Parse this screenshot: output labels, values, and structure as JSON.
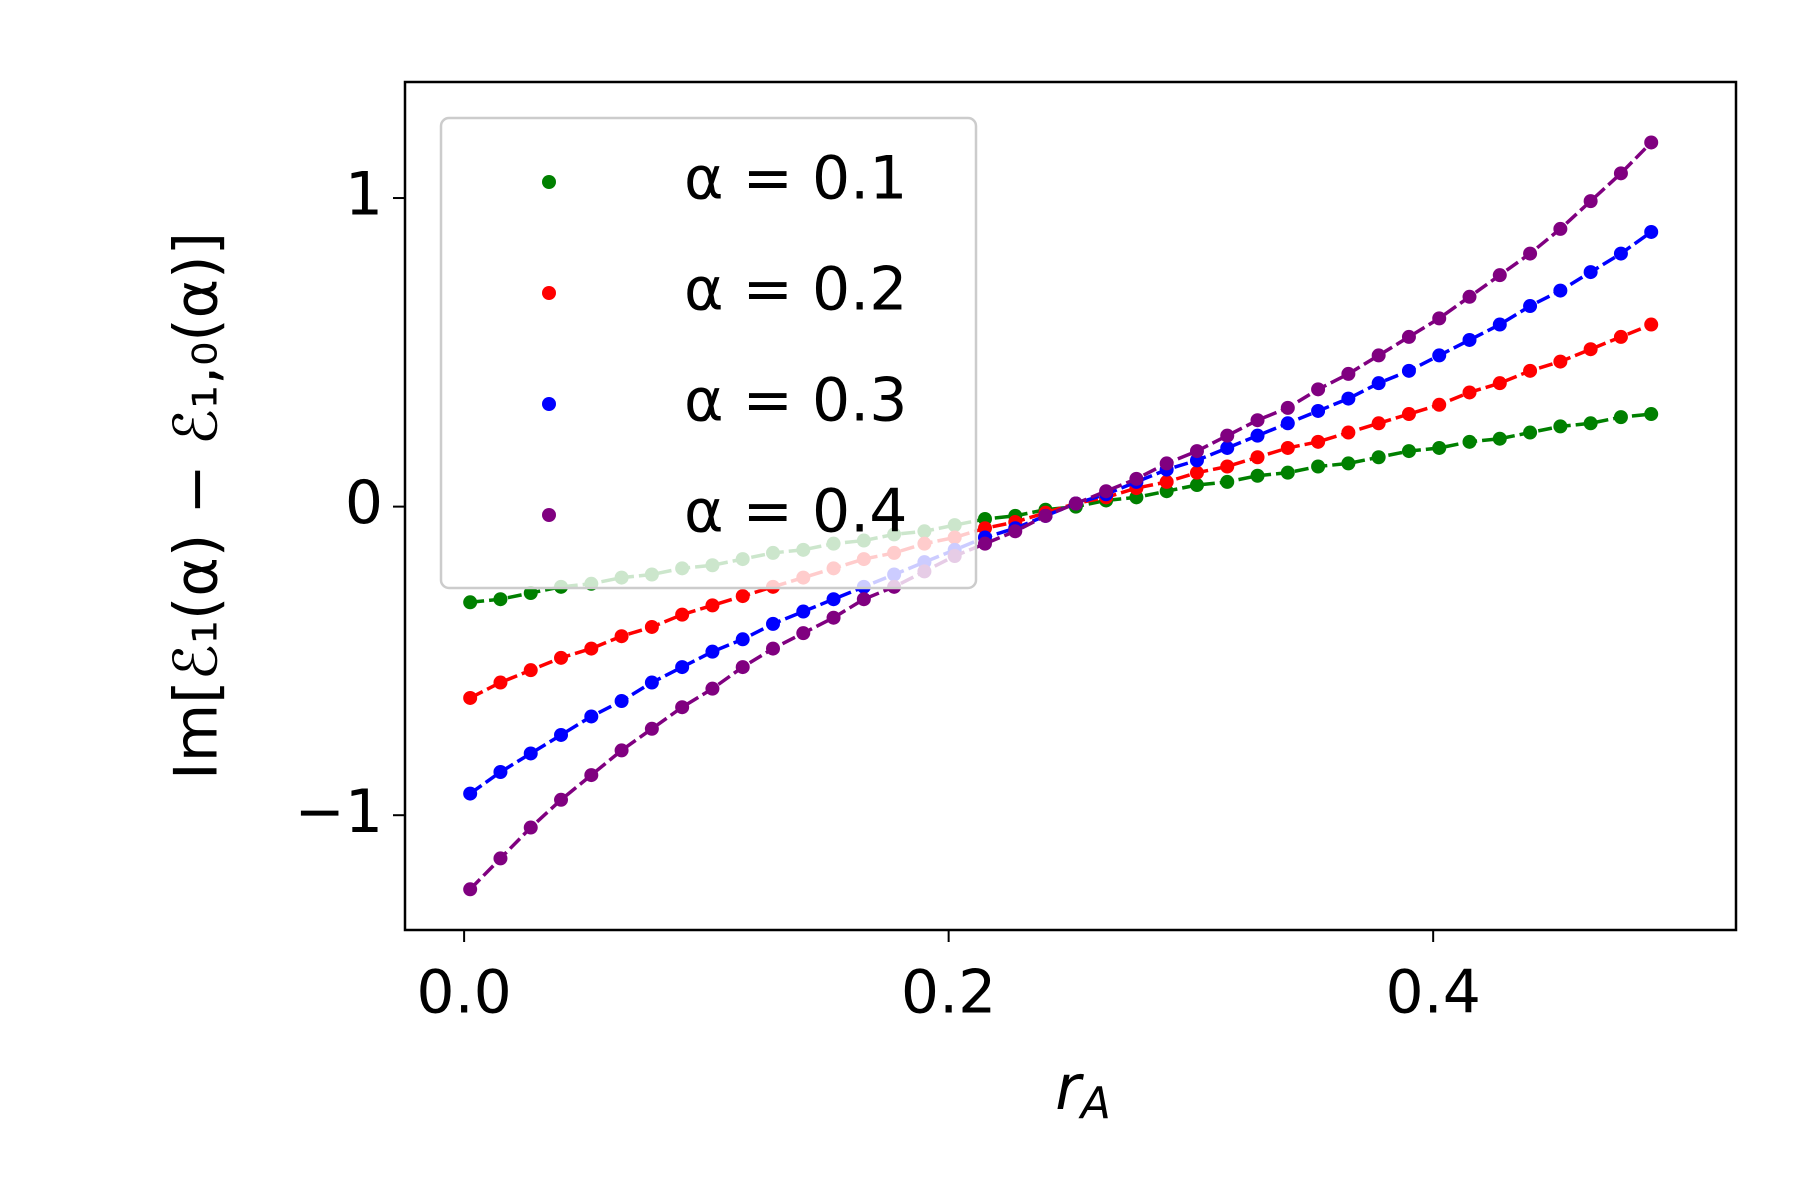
{
  "chart_data": {
    "type": "line",
    "xlabel": "rA",
    "ylabel": "Im[ℰ₁(α) − ℰ₁,₀(α)]",
    "x": [
      0.0025,
      0.015,
      0.0275,
      0.04,
      0.0525,
      0.065,
      0.0775,
      0.09,
      0.1025,
      0.115,
      0.1275,
      0.14,
      0.1525,
      0.165,
      0.1775,
      0.19,
      0.2025,
      0.215,
      0.2275,
      0.24,
      0.2525,
      0.265,
      0.2775,
      0.29,
      0.3025,
      0.315,
      0.3275,
      0.34,
      0.3525,
      0.365,
      0.3775,
      0.39,
      0.4025,
      0.415,
      0.4275,
      0.44,
      0.4525,
      0.465,
      0.4775,
      0.49
    ],
    "series": [
      {
        "name": "α = 0.1",
        "color": "#008000",
        "values": [
          -0.31,
          -0.3,
          -0.28,
          -0.26,
          -0.25,
          -0.23,
          -0.22,
          -0.2,
          -0.19,
          -0.17,
          -0.15,
          -0.14,
          -0.12,
          -0.11,
          -0.09,
          -0.08,
          -0.06,
          -0.04,
          -0.03,
          -0.01,
          0.0,
          0.02,
          0.03,
          0.05,
          0.07,
          0.08,
          0.1,
          0.11,
          0.13,
          0.14,
          0.16,
          0.18,
          0.19,
          0.21,
          0.22,
          0.24,
          0.26,
          0.27,
          0.29,
          0.3
        ]
      },
      {
        "name": "α = 0.2",
        "color": "#ff0000",
        "values": [
          -0.62,
          -0.57,
          -0.53,
          -0.49,
          -0.46,
          -0.42,
          -0.39,
          -0.35,
          -0.32,
          -0.29,
          -0.26,
          -0.23,
          -0.2,
          -0.17,
          -0.15,
          -0.12,
          -0.1,
          -0.07,
          -0.05,
          -0.02,
          0.01,
          0.03,
          0.06,
          0.08,
          0.11,
          0.13,
          0.16,
          0.19,
          0.21,
          0.24,
          0.27,
          0.3,
          0.33,
          0.37,
          0.4,
          0.44,
          0.47,
          0.51,
          0.55,
          0.59
        ]
      },
      {
        "name": "α = 0.3",
        "color": "#0000ff",
        "values": [
          -0.93,
          -0.86,
          -0.8,
          -0.74,
          -0.68,
          -0.63,
          -0.57,
          -0.52,
          -0.47,
          -0.43,
          -0.38,
          -0.34,
          -0.3,
          -0.26,
          -0.22,
          -0.18,
          -0.14,
          -0.1,
          -0.07,
          -0.03,
          0.01,
          0.04,
          0.08,
          0.12,
          0.15,
          0.19,
          0.23,
          0.27,
          0.31,
          0.35,
          0.4,
          0.44,
          0.49,
          0.54,
          0.59,
          0.65,
          0.7,
          0.76,
          0.82,
          0.89
        ]
      },
      {
        "name": "α = 0.4",
        "color": "#800080",
        "values": [
          -1.24,
          -1.14,
          -1.04,
          -0.95,
          -0.87,
          -0.79,
          -0.72,
          -0.65,
          -0.59,
          -0.52,
          -0.46,
          -0.41,
          -0.36,
          -0.3,
          -0.26,
          -0.21,
          -0.16,
          -0.12,
          -0.08,
          -0.03,
          0.01,
          0.05,
          0.09,
          0.14,
          0.18,
          0.23,
          0.28,
          0.32,
          0.38,
          0.43,
          0.49,
          0.55,
          0.61,
          0.68,
          0.75,
          0.82,
          0.9,
          0.99,
          1.08,
          1.18
        ]
      }
    ],
    "xlim": [
      -0.0244,
      0.525
    ],
    "ylim": [
      -1.372,
      1.376
    ],
    "xticks": [
      {
        "value": 0,
        "label": "0.0"
      },
      {
        "value": 0.2,
        "label": "0.2"
      },
      {
        "value": 0.4,
        "label": "0.4"
      }
    ],
    "yticks": [
      {
        "value": -1,
        "label": "−1"
      },
      0,
      1
    ],
    "legend": "upper-left",
    "grid": false
  }
}
